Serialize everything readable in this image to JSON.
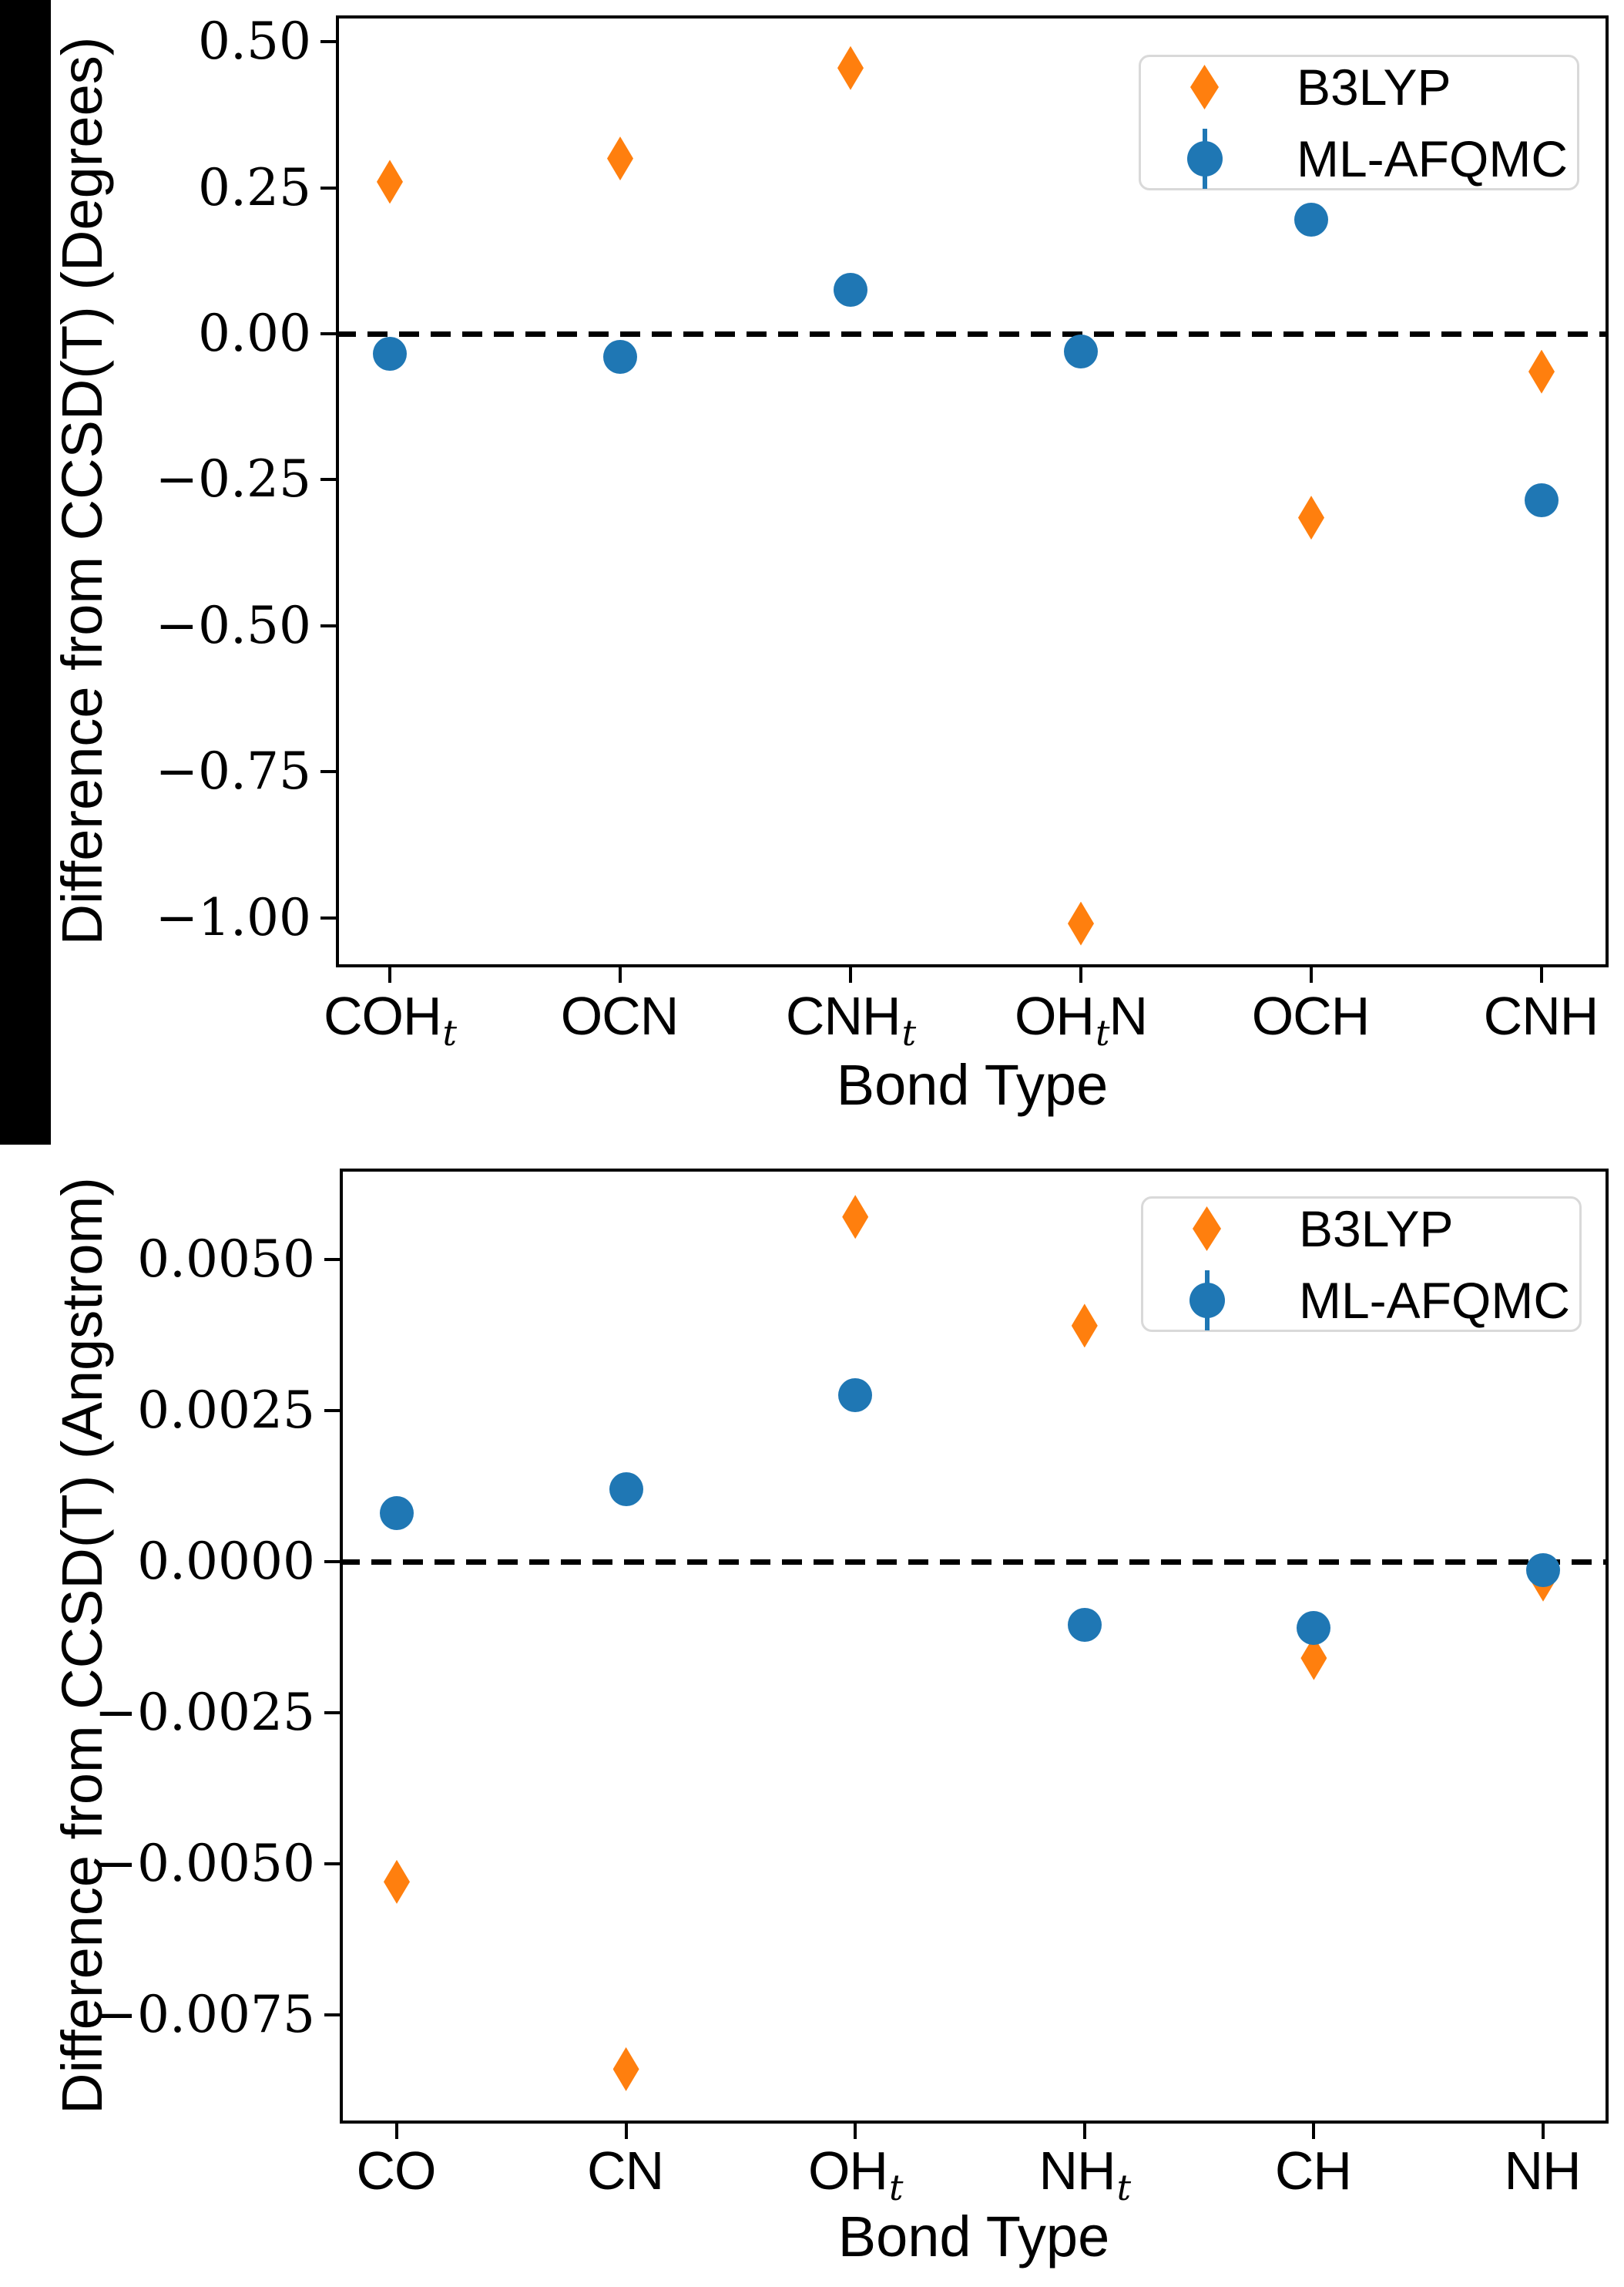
{
  "page": {
    "background": "#ffffff",
    "artifact": "left-black-scan-bar"
  },
  "chart_data": [
    {
      "type": "scatter",
      "title": "",
      "xlabel": "Bond Type",
      "ylabel": "Difference from CCSD(T) (Degrees)",
      "categories": [
        "COH_t",
        "OCN",
        "CNH_t",
        "OH_tN",
        "OCH",
        "CNH"
      ],
      "categories_rich": [
        {
          "pre": "COH",
          "sub": "t",
          "post": ""
        },
        {
          "pre": "OCN",
          "sub": "",
          "post": ""
        },
        {
          "pre": "CNH",
          "sub": "t",
          "post": ""
        },
        {
          "pre": "OH",
          "sub": "t",
          "post": "N"
        },
        {
          "pre": "OCH",
          "sub": "",
          "post": ""
        },
        {
          "pre": "CNH",
          "sub": "",
          "post": ""
        }
      ],
      "ylim": [
        -1.085,
        0.545
      ],
      "yticks": [
        {
          "v": 0.5,
          "label": "0.50"
        },
        {
          "v": 0.25,
          "label": "0.25"
        },
        {
          "v": 0.0,
          "label": "0.00"
        },
        {
          "v": -0.25,
          "label": "−0.25"
        },
        {
          "v": -0.5,
          "label": "−0.50"
        },
        {
          "v": -0.75,
          "label": "−0.75"
        },
        {
          "v": -1.0,
          "label": "−1.00"
        }
      ],
      "zero_line_dashed": true,
      "grid": false,
      "legend_position": "upper right",
      "series": [
        {
          "name": "B3LYP",
          "marker": "thin-diamond",
          "color": "#ff7f0e",
          "errorbar": false,
          "values": [
            0.26,
            0.3,
            0.455,
            -1.01,
            -0.315,
            -0.065
          ]
        },
        {
          "name": "ML-AFQMC",
          "marker": "circle",
          "color": "#1f77b4",
          "errorbar": true,
          "values": [
            -0.035,
            -0.04,
            0.075,
            -0.03,
            0.195,
            -0.285
          ]
        }
      ]
    },
    {
      "type": "scatter",
      "title": "",
      "xlabel": "Bond Type",
      "ylabel": "Difference from CCSD(T) (Angstrom)",
      "categories": [
        "CO",
        "CN",
        "OH_t",
        "NH_t",
        "CH",
        "NH"
      ],
      "categories_rich": [
        {
          "pre": "CO",
          "sub": "",
          "post": ""
        },
        {
          "pre": "CN",
          "sub": "",
          "post": ""
        },
        {
          "pre": "OH",
          "sub": "t",
          "post": ""
        },
        {
          "pre": "NH",
          "sub": "t",
          "post": ""
        },
        {
          "pre": "CH",
          "sub": "",
          "post": ""
        },
        {
          "pre": "NH",
          "sub": "",
          "post": ""
        }
      ],
      "ylim": [
        -0.0093,
        0.0065
      ],
      "yticks": [
        {
          "v": 0.005,
          "label": "0.0050"
        },
        {
          "v": 0.0025,
          "label": "0.0025"
        },
        {
          "v": 0.0,
          "label": "0.0000"
        },
        {
          "v": -0.0025,
          "label": "−0.0025"
        },
        {
          "v": -0.005,
          "label": "−0.0050"
        },
        {
          "v": -0.0075,
          "label": "−0.0075"
        }
      ],
      "zero_line_dashed": true,
      "grid": false,
      "legend_position": "upper right",
      "series": [
        {
          "name": "B3LYP",
          "marker": "thin-diamond",
          "color": "#ff7f0e",
          "errorbar": false,
          "values": [
            -0.0053,
            -0.0084,
            0.0057,
            0.0039,
            -0.0016,
            -0.0003
          ]
        },
        {
          "name": "ML-AFQMC",
          "marker": "circle",
          "color": "#1f77b4",
          "errorbar": true,
          "values": [
            0.0008,
            0.0012,
            0.00275,
            -0.00105,
            -0.0011,
            -0.00015
          ]
        }
      ]
    }
  ]
}
